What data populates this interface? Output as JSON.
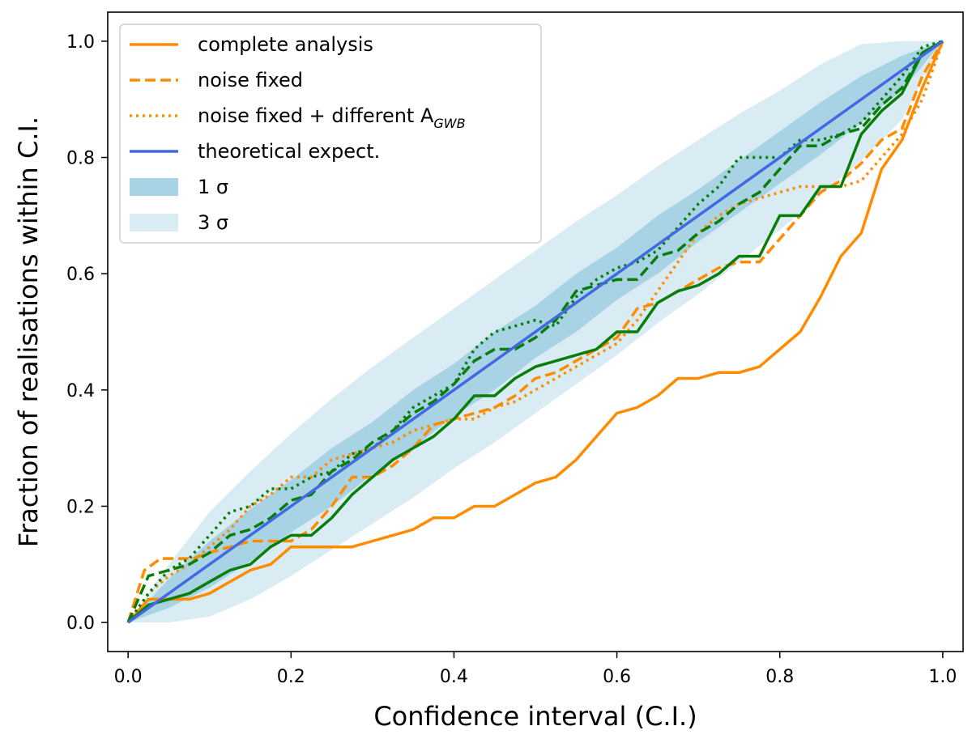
{
  "chart_data": {
    "type": "line",
    "title": "",
    "xlabel": "Confidence interval (C.I.)",
    "ylabel": "Fraction of realisations within C.I.",
    "xlim": [
      -0.025,
      1.025
    ],
    "ylim": [
      -0.05,
      1.05
    ],
    "xticks": [
      0.0,
      0.2,
      0.4,
      0.6,
      0.8,
      1.0
    ],
    "yticks": [
      0.0,
      0.2,
      0.4,
      0.6,
      0.8,
      1.0
    ],
    "xtick_labels": [
      "0.0",
      "0.2",
      "0.4",
      "0.6",
      "0.8",
      "1.0"
    ],
    "ytick_labels": [
      "0.0",
      "0.2",
      "0.4",
      "0.6",
      "0.8",
      "1.0"
    ],
    "grid": false,
    "legend_position": "top-left",
    "colors": {
      "orange": "#ff8c00",
      "green": "#097d09",
      "blue": "#4169e1",
      "band1": "#a7d3e4",
      "band3": "#d9ecf3"
    },
    "legend": [
      {
        "label": "complete analysis",
        "style": "solid",
        "kind": "line"
      },
      {
        "label": "noise fixed",
        "style": "dashed",
        "kind": "line"
      },
      {
        "label": "noise fixed + different A",
        "subscript": "GWB",
        "style": "dotted",
        "kind": "line"
      },
      {
        "label": "theoretical expect.",
        "style": "solid",
        "kind": "line",
        "color": "blue"
      },
      {
        "label": "1 σ",
        "kind": "band",
        "color": "band1"
      },
      {
        "label": "3 σ",
        "kind": "band",
        "color": "band3"
      }
    ],
    "bands": {
      "x": [
        0,
        0.05,
        0.1,
        0.15,
        0.2,
        0.25,
        0.3,
        0.35,
        0.4,
        0.45,
        0.5,
        0.55,
        0.6,
        0.65,
        0.7,
        0.75,
        0.8,
        0.85,
        0.9,
        0.95,
        1.0
      ],
      "sigma1_lower": [
        0,
        0.025,
        0.06,
        0.105,
        0.155,
        0.2,
        0.255,
        0.3,
        0.355,
        0.4,
        0.455,
        0.5,
        0.555,
        0.6,
        0.655,
        0.705,
        0.755,
        0.805,
        0.86,
        0.915,
        1.0
      ],
      "sigma1_upper": [
        0,
        0.075,
        0.14,
        0.195,
        0.245,
        0.3,
        0.345,
        0.4,
        0.445,
        0.5,
        0.545,
        0.6,
        0.645,
        0.7,
        0.745,
        0.795,
        0.845,
        0.895,
        0.94,
        0.975,
        1.0
      ],
      "sigma3_lower": [
        0,
        0.0,
        0.01,
        0.04,
        0.08,
        0.125,
        0.17,
        0.215,
        0.265,
        0.31,
        0.36,
        0.41,
        0.46,
        0.515,
        0.565,
        0.62,
        0.675,
        0.735,
        0.795,
        0.865,
        1.0
      ],
      "sigma3_upper": [
        0,
        0.1,
        0.19,
        0.26,
        0.325,
        0.385,
        0.44,
        0.49,
        0.54,
        0.59,
        0.64,
        0.69,
        0.735,
        0.785,
        0.83,
        0.875,
        0.915,
        0.96,
        0.995,
        1.0,
        1.0
      ]
    },
    "series": [
      {
        "name": "theoretical expect.",
        "color": "blue",
        "style": "solid",
        "x": [
          0,
          1
        ],
        "y": [
          0,
          1
        ]
      },
      {
        "name": "complete analysis (orange)",
        "color": "orange",
        "style": "solid",
        "x": [
          0,
          0.025,
          0.05,
          0.075,
          0.1,
          0.125,
          0.15,
          0.175,
          0.2,
          0.225,
          0.25,
          0.275,
          0.3,
          0.325,
          0.35,
          0.375,
          0.4,
          0.425,
          0.45,
          0.475,
          0.5,
          0.525,
          0.55,
          0.575,
          0.6,
          0.625,
          0.65,
          0.675,
          0.7,
          0.725,
          0.75,
          0.775,
          0.8,
          0.825,
          0.85,
          0.875,
          0.9,
          0.925,
          0.95,
          0.975,
          1.0
        ],
        "y": [
          0,
          0.04,
          0.04,
          0.04,
          0.05,
          0.07,
          0.09,
          0.1,
          0.13,
          0.13,
          0.13,
          0.13,
          0.14,
          0.15,
          0.16,
          0.18,
          0.18,
          0.2,
          0.2,
          0.22,
          0.24,
          0.25,
          0.28,
          0.32,
          0.36,
          0.37,
          0.39,
          0.42,
          0.42,
          0.43,
          0.43,
          0.44,
          0.47,
          0.5,
          0.56,
          0.63,
          0.67,
          0.78,
          0.83,
          0.92,
          1.0
        ]
      },
      {
        "name": "noise fixed (orange)",
        "color": "orange",
        "style": "dashed",
        "x": [
          0,
          0.02,
          0.04,
          0.06,
          0.08,
          0.1,
          0.125,
          0.15,
          0.175,
          0.2,
          0.225,
          0.25,
          0.275,
          0.3,
          0.325,
          0.35,
          0.375,
          0.4,
          0.425,
          0.45,
          0.475,
          0.5,
          0.525,
          0.55,
          0.575,
          0.6,
          0.625,
          0.65,
          0.675,
          0.7,
          0.725,
          0.75,
          0.775,
          0.8,
          0.825,
          0.85,
          0.875,
          0.9,
          0.925,
          0.95,
          0.975,
          1.0
        ],
        "y": [
          0,
          0.09,
          0.11,
          0.11,
          0.11,
          0.12,
          0.13,
          0.14,
          0.14,
          0.14,
          0.16,
          0.2,
          0.25,
          0.25,
          0.27,
          0.3,
          0.34,
          0.35,
          0.36,
          0.37,
          0.39,
          0.42,
          0.43,
          0.45,
          0.47,
          0.49,
          0.54,
          0.55,
          0.57,
          0.59,
          0.61,
          0.62,
          0.62,
          0.66,
          0.7,
          0.74,
          0.76,
          0.79,
          0.83,
          0.85,
          0.94,
          1.0
        ]
      },
      {
        "name": "noise fixed + different A_GWB (orange)",
        "color": "orange",
        "style": "dotted",
        "x": [
          0,
          0.025,
          0.05,
          0.075,
          0.1,
          0.125,
          0.15,
          0.175,
          0.2,
          0.225,
          0.25,
          0.275,
          0.3,
          0.325,
          0.35,
          0.375,
          0.4,
          0.425,
          0.45,
          0.475,
          0.5,
          0.525,
          0.55,
          0.575,
          0.6,
          0.625,
          0.65,
          0.675,
          0.7,
          0.725,
          0.75,
          0.775,
          0.8,
          0.825,
          0.85,
          0.875,
          0.9,
          0.925,
          0.95,
          0.975,
          1.0
        ],
        "y": [
          0,
          0.05,
          0.08,
          0.1,
          0.13,
          0.16,
          0.2,
          0.22,
          0.25,
          0.25,
          0.28,
          0.29,
          0.3,
          0.31,
          0.33,
          0.34,
          0.35,
          0.35,
          0.37,
          0.38,
          0.4,
          0.42,
          0.44,
          0.46,
          0.48,
          0.52,
          0.57,
          0.62,
          0.67,
          0.7,
          0.72,
          0.73,
          0.74,
          0.75,
          0.75,
          0.75,
          0.76,
          0.8,
          0.84,
          0.9,
          1.0
        ]
      },
      {
        "name": "complete analysis (green)",
        "color": "green",
        "style": "solid",
        "x": [
          0,
          0.025,
          0.05,
          0.075,
          0.1,
          0.125,
          0.15,
          0.175,
          0.2,
          0.225,
          0.25,
          0.275,
          0.3,
          0.325,
          0.35,
          0.375,
          0.4,
          0.425,
          0.45,
          0.475,
          0.5,
          0.525,
          0.55,
          0.575,
          0.6,
          0.625,
          0.65,
          0.675,
          0.7,
          0.725,
          0.75,
          0.775,
          0.8,
          0.825,
          0.85,
          0.875,
          0.9,
          0.925,
          0.95,
          0.975,
          1.0
        ],
        "y": [
          0,
          0.03,
          0.04,
          0.05,
          0.07,
          0.09,
          0.1,
          0.13,
          0.15,
          0.15,
          0.18,
          0.22,
          0.25,
          0.28,
          0.3,
          0.32,
          0.35,
          0.39,
          0.39,
          0.42,
          0.44,
          0.45,
          0.46,
          0.47,
          0.5,
          0.5,
          0.55,
          0.57,
          0.58,
          0.6,
          0.63,
          0.63,
          0.7,
          0.7,
          0.75,
          0.75,
          0.84,
          0.88,
          0.91,
          0.98,
          1.0
        ]
      },
      {
        "name": "noise fixed (green)",
        "color": "green",
        "style": "dashed",
        "x": [
          0,
          0.025,
          0.05,
          0.075,
          0.1,
          0.125,
          0.15,
          0.175,
          0.2,
          0.225,
          0.25,
          0.275,
          0.3,
          0.325,
          0.35,
          0.375,
          0.4,
          0.425,
          0.45,
          0.475,
          0.5,
          0.525,
          0.55,
          0.575,
          0.6,
          0.625,
          0.65,
          0.675,
          0.7,
          0.725,
          0.75,
          0.775,
          0.8,
          0.825,
          0.85,
          0.875,
          0.9,
          0.925,
          0.95,
          0.975,
          1.0
        ],
        "y": [
          0,
          0.08,
          0.09,
          0.1,
          0.12,
          0.15,
          0.16,
          0.18,
          0.21,
          0.22,
          0.26,
          0.28,
          0.31,
          0.33,
          0.36,
          0.38,
          0.41,
          0.45,
          0.47,
          0.47,
          0.49,
          0.52,
          0.57,
          0.58,
          0.59,
          0.59,
          0.63,
          0.64,
          0.67,
          0.69,
          0.72,
          0.74,
          0.78,
          0.82,
          0.82,
          0.84,
          0.85,
          0.89,
          0.92,
          0.98,
          1.0
        ]
      },
      {
        "name": "noise fixed + different A_GWB (green)",
        "color": "green",
        "style": "dotted",
        "x": [
          0,
          0.025,
          0.05,
          0.075,
          0.1,
          0.125,
          0.15,
          0.175,
          0.2,
          0.225,
          0.25,
          0.275,
          0.3,
          0.325,
          0.35,
          0.375,
          0.4,
          0.425,
          0.45,
          0.475,
          0.5,
          0.525,
          0.55,
          0.575,
          0.6,
          0.625,
          0.65,
          0.675,
          0.7,
          0.725,
          0.75,
          0.775,
          0.8,
          0.825,
          0.85,
          0.875,
          0.9,
          0.925,
          0.95,
          0.975,
          1.0
        ],
        "y": [
          0,
          0.05,
          0.09,
          0.11,
          0.15,
          0.19,
          0.2,
          0.23,
          0.23,
          0.25,
          0.26,
          0.29,
          0.3,
          0.33,
          0.37,
          0.39,
          0.41,
          0.47,
          0.5,
          0.51,
          0.52,
          0.51,
          0.56,
          0.59,
          0.61,
          0.62,
          0.64,
          0.68,
          0.72,
          0.75,
          0.8,
          0.8,
          0.8,
          0.83,
          0.83,
          0.84,
          0.86,
          0.9,
          0.94,
          0.99,
          1.0
        ]
      }
    ]
  }
}
